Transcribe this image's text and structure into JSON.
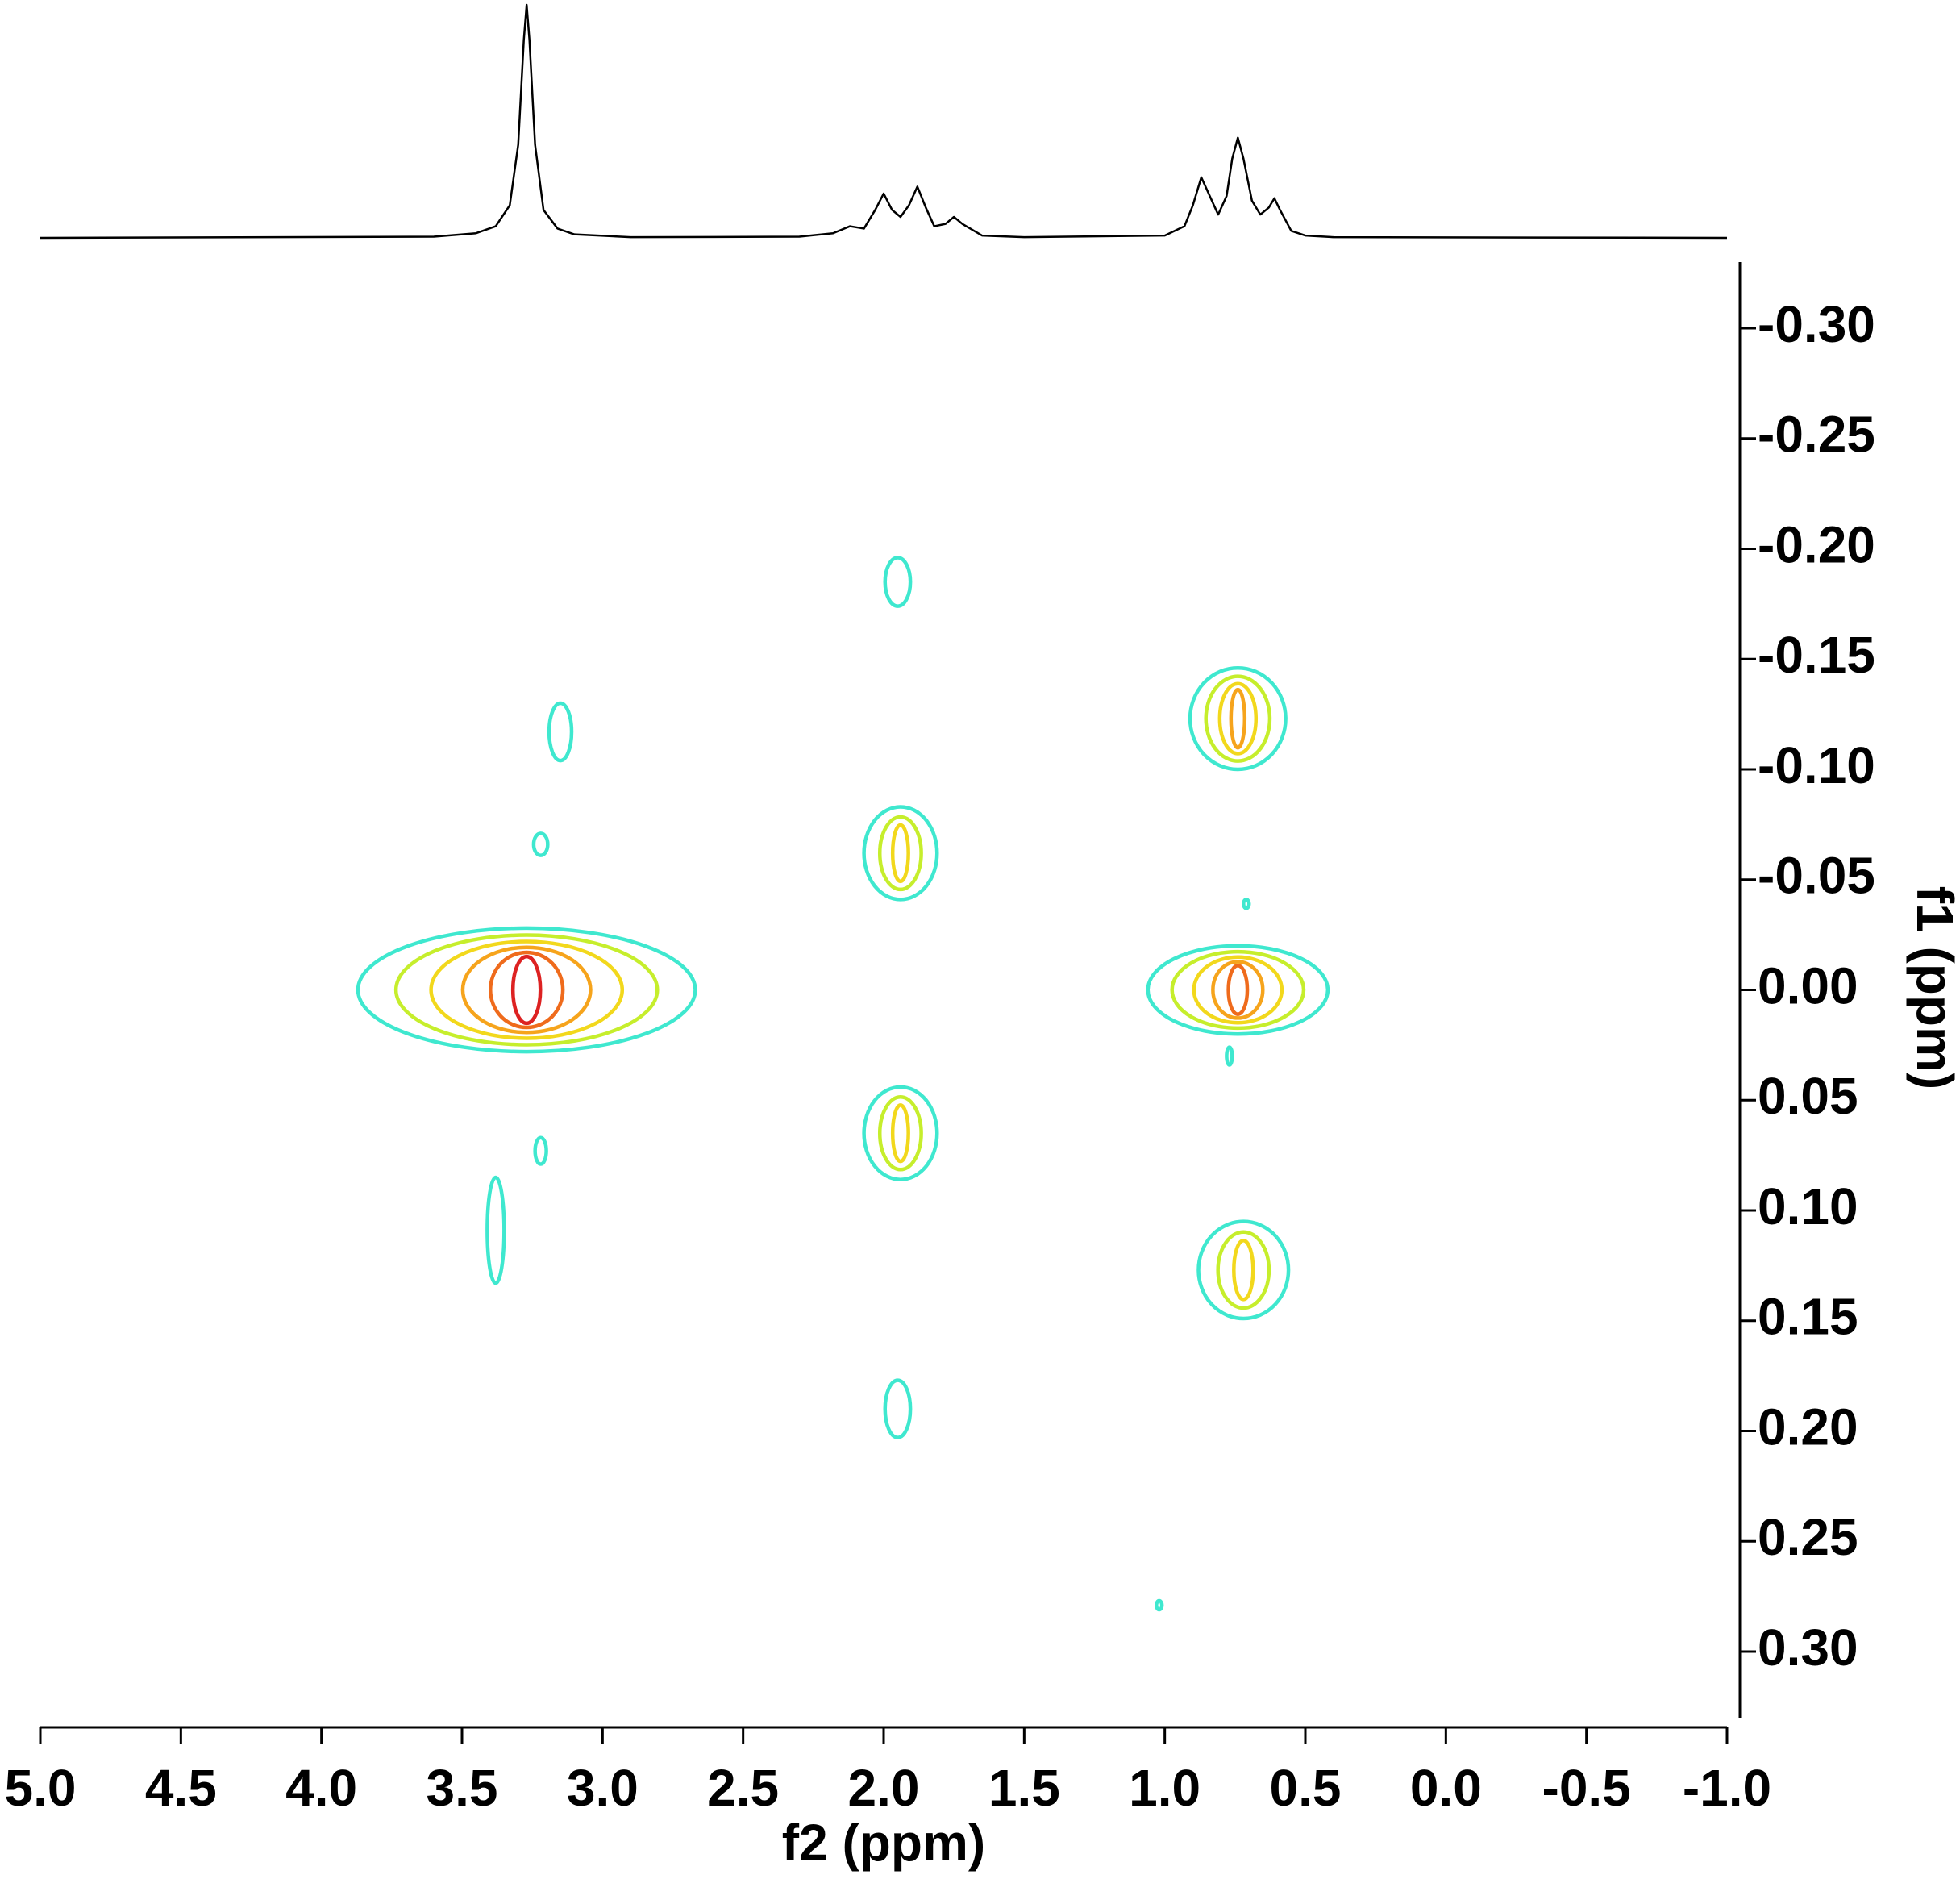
{
  "chart_data": {
    "type": "contour",
    "xlabel": "f2 (ppm)",
    "ylabel": "f1 (ppm)",
    "xlim": [
      5.0,
      -1.0
    ],
    "ylim": [
      -0.33,
      0.33
    ],
    "xticks": [
      {
        "value": 5,
        "label": "5.0"
      },
      {
        "value": 4.5,
        "label": "4.5"
      },
      {
        "value": 4,
        "label": "4.0"
      },
      {
        "value": 3.5,
        "label": "3.5"
      },
      {
        "value": 3,
        "label": "3.0"
      },
      {
        "value": 2.5,
        "label": "2.5"
      },
      {
        "value": 2,
        "label": "2.0"
      },
      {
        "value": 1.5,
        "label": "1.5"
      },
      {
        "value": 1,
        "label": "1.0"
      },
      {
        "value": 0.5,
        "label": "0.5"
      },
      {
        "value": 0,
        "label": "0.0"
      },
      {
        "value": -0.5,
        "label": "-0.5"
      },
      {
        "value": -1,
        "label": "-1.0"
      }
    ],
    "yticks": [
      {
        "value": -0.3,
        "label": "-0.30"
      },
      {
        "value": -0.25,
        "label": "-0.25"
      },
      {
        "value": -0.2,
        "label": "-0.20"
      },
      {
        "value": -0.15,
        "label": "-0.15"
      },
      {
        "value": -0.1,
        "label": "-0.10"
      },
      {
        "value": -0.05,
        "label": "-0.05"
      },
      {
        "value": 0,
        "label": "0.00"
      },
      {
        "value": 0.05,
        "label": "0.05"
      },
      {
        "value": 0.1,
        "label": "0.10"
      },
      {
        "value": 0.15,
        "label": "0.15"
      },
      {
        "value": 0.2,
        "label": "0.20"
      },
      {
        "value": 0.25,
        "label": "0.25"
      },
      {
        "value": 0.3,
        "label": "0.30"
      }
    ],
    "level_colors": [
      "#3fe8cf",
      "#c6ee2c",
      "#f2d81c",
      "#f6a41c",
      "#ef6b1c",
      "#dd2222"
    ],
    "projection": {
      "color": "#000000",
      "x": [
        5.0,
        3.6,
        3.45,
        3.38,
        3.33,
        3.3,
        3.28,
        3.27,
        3.26,
        3.24,
        3.21,
        3.16,
        3.1,
        2.9,
        2.3,
        2.18,
        2.12,
        2.07,
        2.03,
        2.0,
        1.97,
        1.94,
        1.91,
        1.88,
        1.85,
        1.82,
        1.78,
        1.75,
        1.72,
        1.65,
        1.5,
        1.0,
        0.93,
        0.9,
        0.87,
        0.84,
        0.81,
        0.78,
        0.76,
        0.74,
        0.72,
        0.69,
        0.66,
        0.63,
        0.61,
        0.59,
        0.55,
        0.5,
        0.4,
        -1.0
      ],
      "y": [
        0,
        0.5,
        2,
        5,
        14,
        40,
        85,
        100,
        85,
        40,
        12,
        4,
        1.5,
        0.3,
        0.5,
        2,
        5,
        4,
        12,
        19,
        12,
        9,
        14,
        22,
        13,
        5,
        6,
        9,
        6,
        1,
        0.3,
        1,
        5,
        14,
        26,
        18,
        10,
        18,
        34,
        43,
        34,
        16,
        10,
        13,
        17,
        12,
        3,
        1,
        0.3,
        0
      ]
    },
    "peaks": [
      {
        "x": 3.27,
        "y": 0.0,
        "wx": 0.6,
        "wy": 0.028,
        "levels": 6
      },
      {
        "x": 3.15,
        "y": -0.117,
        "wx": 0.04,
        "wy": 0.013,
        "levels": 1
      },
      {
        "x": 3.22,
        "y": -0.066,
        "wx": 0.025,
        "wy": 0.005,
        "levels": 1
      },
      {
        "x": 3.22,
        "y": 0.073,
        "wx": 0.02,
        "wy": 0.006,
        "levels": 1
      },
      {
        "x": 3.38,
        "y": 0.109,
        "wx": 0.03,
        "wy": 0.024,
        "levels": 1
      },
      {
        "x": 1.95,
        "y": -0.185,
        "wx": 0.045,
        "wy": 0.011,
        "levels": 1
      },
      {
        "x": 1.94,
        "y": -0.062,
        "wx": 0.13,
        "wy": 0.021,
        "levels": 3
      },
      {
        "x": 1.94,
        "y": 0.065,
        "wx": 0.13,
        "wy": 0.021,
        "levels": 3
      },
      {
        "x": 1.95,
        "y": 0.19,
        "wx": 0.045,
        "wy": 0.013,
        "levels": 1
      },
      {
        "x": 0.74,
        "y": -0.123,
        "wx": 0.17,
        "wy": 0.023,
        "levels": 4
      },
      {
        "x": 0.74,
        "y": 0.0,
        "wx": 0.32,
        "wy": 0.02,
        "levels": 5
      },
      {
        "x": 0.72,
        "y": 0.127,
        "wx": 0.16,
        "wy": 0.022,
        "levels": 3
      },
      {
        "x": 0.71,
        "y": -0.039,
        "wx": 0.01,
        "wy": 0.002,
        "levels": 1
      },
      {
        "x": 0.77,
        "y": 0.03,
        "wx": 0.01,
        "wy": 0.004,
        "levels": 1
      },
      {
        "x": 1.02,
        "y": 0.279,
        "wx": 0.01,
        "wy": 0.002,
        "levels": 1
      }
    ]
  }
}
